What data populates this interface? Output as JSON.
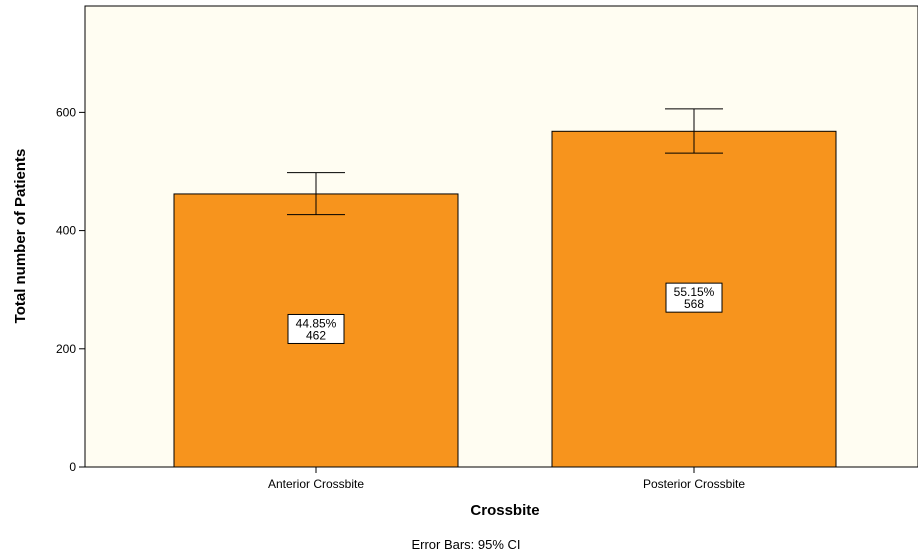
{
  "chart_data": {
    "type": "bar",
    "title": "",
    "xlabel": "Crossbite",
    "ylabel": "Total number of Patients",
    "categories": [
      "Anterior Crossbite",
      "Posterior Crossbite"
    ],
    "values": [
      462,
      568
    ],
    "percent_labels": [
      "44.85%",
      "55.15%"
    ],
    "count_labels": [
      "462",
      "568"
    ],
    "error_bars": [
      {
        "low": 427,
        "high": 498
      },
      {
        "low": 531,
        "high": 606
      }
    ],
    "ylim": [
      0,
      780
    ],
    "yticks": [
      0,
      200,
      400,
      600
    ],
    "grid": false,
    "footnote": "Error Bars: 95% CI",
    "colors": {
      "bar_fill": "#f7941d",
      "bar_stroke": "#000000",
      "plot_background": "#fffdf2"
    }
  }
}
